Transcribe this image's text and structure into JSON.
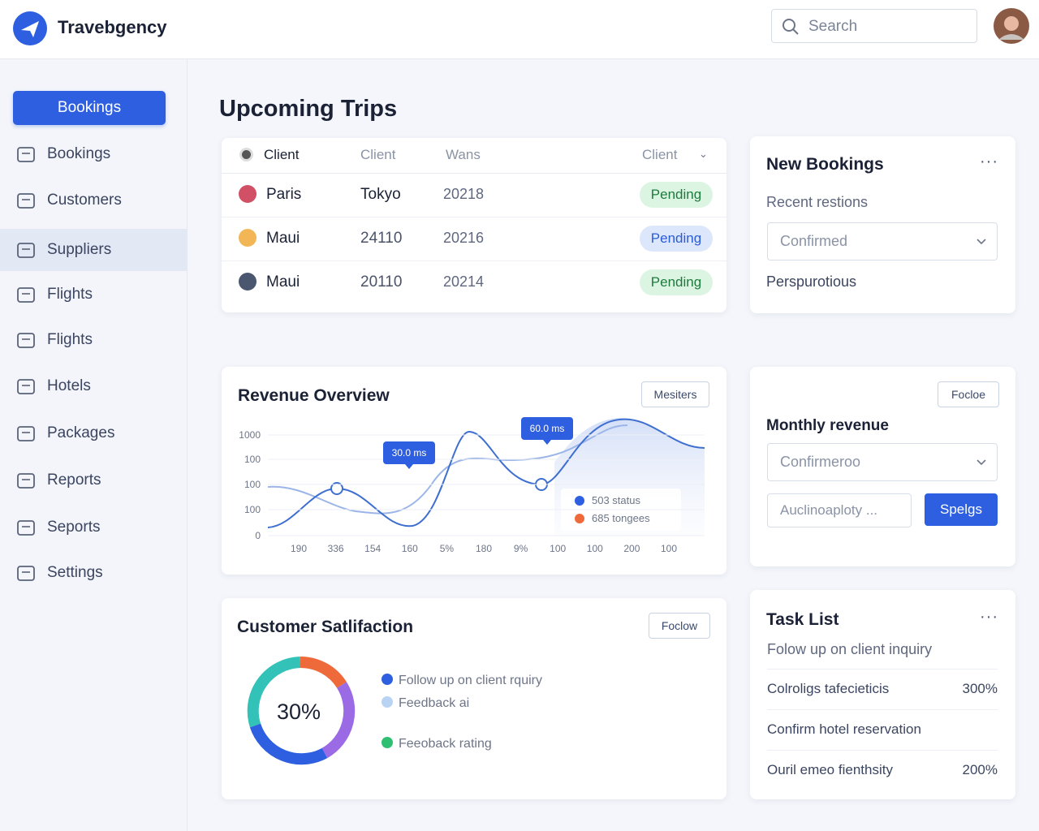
{
  "header": {
    "brand": "Travebgency",
    "search_placeholder": "Search"
  },
  "sidebar": {
    "active_button": "Bookings",
    "items": [
      "Bookings",
      "Customers",
      "Suppliers",
      "Flights",
      "Flights",
      "Hotels",
      "Packages",
      "Reports",
      "Seports",
      "Settings"
    ]
  },
  "upcoming_trips": {
    "title": "Upcoming Trips",
    "columns": [
      "Client",
      "Client",
      "Wans",
      "Client"
    ],
    "rows": [
      [
        "Paris",
        "Tokyo",
        "20218",
        "Pending"
      ],
      [
        "Maui",
        "24110",
        "20216",
        "Pending"
      ],
      [
        "Maui",
        "20110",
        "20214",
        "Pending"
      ]
    ]
  },
  "new_bookings": {
    "title": "New Bookings",
    "subtitle": "Recent restions",
    "select": "Confirmed",
    "note": "Perspurotious"
  },
  "revenue_overview": {
    "title": "Revenue Overview",
    "button": "Mesiters",
    "yticks": [
      "1000",
      "100",
      "100",
      "100",
      "0"
    ],
    "xticks": [
      "190",
      "336",
      "154",
      "160",
      "5%",
      "180",
      "9%",
      "100",
      "100",
      "200",
      "100"
    ],
    "callouts": [
      "30.0 ms",
      "60.0 ms"
    ],
    "legend": [
      "503 status",
      "685 tongees"
    ]
  },
  "monthly_revenue": {
    "button": "Focloe",
    "title": "Monthly revenue",
    "select": "Confirmeroo",
    "input": "Auclinoaploty ...",
    "action": "Spelgs"
  },
  "customer_satisfaction": {
    "title": "Customer Satlifaction",
    "button": "Foclow",
    "center": "30%",
    "legend": [
      "Follow up on client rquiry",
      "Feedback ai",
      "Feeoback rating"
    ]
  },
  "task_list": {
    "title": "Task List",
    "subtitle": "Folow up on client inquiry",
    "tasks": [
      {
        "text": "Colroligs tafecieticis",
        "value": "300%"
      },
      {
        "text": "Confirm hotel reservation"
      },
      {
        "text": "Ouril emeo fienthsity",
        "value": "200%"
      }
    ]
  }
}
